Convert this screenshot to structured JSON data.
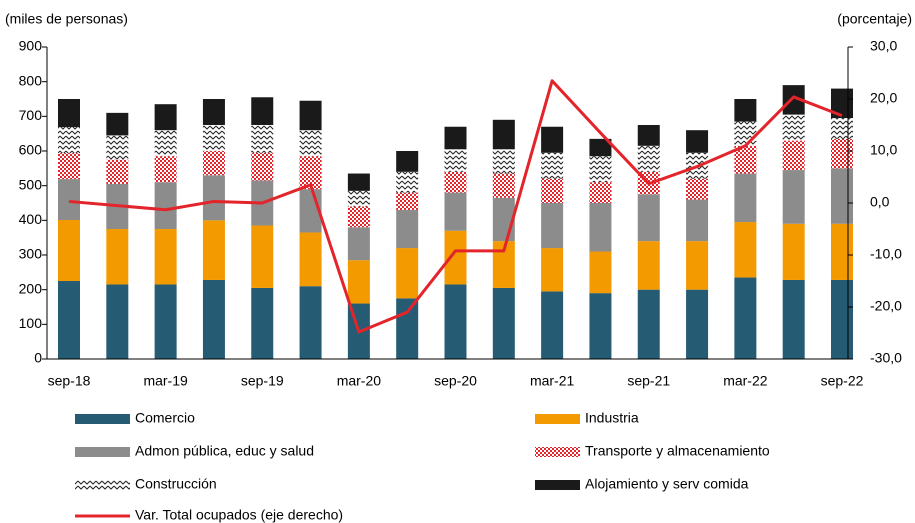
{
  "chart_data": {
    "type": "bar",
    "y_label": "(miles de personas)",
    "y2_label": "(porcentaje)",
    "categories": [
      "sep-18",
      null,
      "mar-19",
      null,
      "sep-19",
      null,
      "mar-20",
      null,
      "sep-20",
      null,
      "mar-21",
      null,
      "sep-21",
      null,
      "mar-22",
      null,
      "sep-22"
    ],
    "stacked": true,
    "series": [
      {
        "name": "Comercio",
        "color": "#265c73",
        "values": [
          225,
          215,
          215,
          228,
          205,
          210,
          160,
          175,
          215,
          205,
          195,
          190,
          200,
          200,
          235,
          228,
          228
        ]
      },
      {
        "name": "Industria",
        "color": "#f39a00",
        "values": [
          176,
          160,
          160,
          172,
          180,
          155,
          125,
          145,
          155,
          135,
          125,
          120,
          140,
          140,
          160,
          162,
          162
        ]
      },
      {
        "name": "Admon pública, educ y salud",
        "color": "#8c8c8c",
        "values": [
          118,
          130,
          135,
          130,
          130,
          125,
          95,
          110,
          110,
          125,
          130,
          140,
          135,
          120,
          140,
          155,
          160
        ]
      },
      {
        "name": "Transporte y almacenamiento",
        "color": "#e3242b",
        "pattern": "checker",
        "values": [
          75,
          70,
          75,
          70,
          80,
          95,
          60,
          50,
          60,
          70,
          70,
          60,
          65,
          60,
          80,
          85,
          85
        ]
      },
      {
        "name": "Construcción",
        "color": "#222222",
        "pattern": "zigzag",
        "values": [
          75,
          70,
          75,
          75,
          80,
          75,
          45,
          60,
          65,
          70,
          75,
          75,
          75,
          75,
          70,
          75,
          60
        ]
      },
      {
        "name": "Alojamiento y serv comida",
        "color": "#1a1a1a",
        "values": [
          81,
          65,
          75,
          75,
          80,
          85,
          50,
          60,
          65,
          85,
          75,
          50,
          60,
          65,
          65,
          85,
          85
        ]
      },
      {
        "name": "Var. Total ocupados (eje derecho)",
        "type": "line",
        "axis": "y2",
        "color": "#e3242b",
        "values": [
          0.3,
          -0.5,
          -1.3,
          0.3,
          0,
          3.5,
          -24.8,
          -21,
          -9.2,
          -9.2,
          23.5,
          13.5,
          3.7,
          7,
          11,
          20.4,
          16.8
        ]
      }
    ],
    "ylim": [
      0,
      900
    ],
    "yticks": [
      0,
      100,
      200,
      300,
      400,
      500,
      600,
      700,
      800,
      900
    ],
    "y2lim": [
      -30,
      30
    ],
    "y2ticks": [
      {
        "value": -30,
        "label": "-30,0"
      },
      {
        "value": -20,
        "label": "-20,0"
      },
      {
        "value": -10,
        "label": "-10,0"
      },
      {
        "value": 0,
        "label": "0,0"
      },
      {
        "value": 10,
        "label": "10,0"
      },
      {
        "value": 20,
        "label": "20,0"
      },
      {
        "value": 30,
        "label": "30,0"
      }
    ],
    "grid": false
  }
}
